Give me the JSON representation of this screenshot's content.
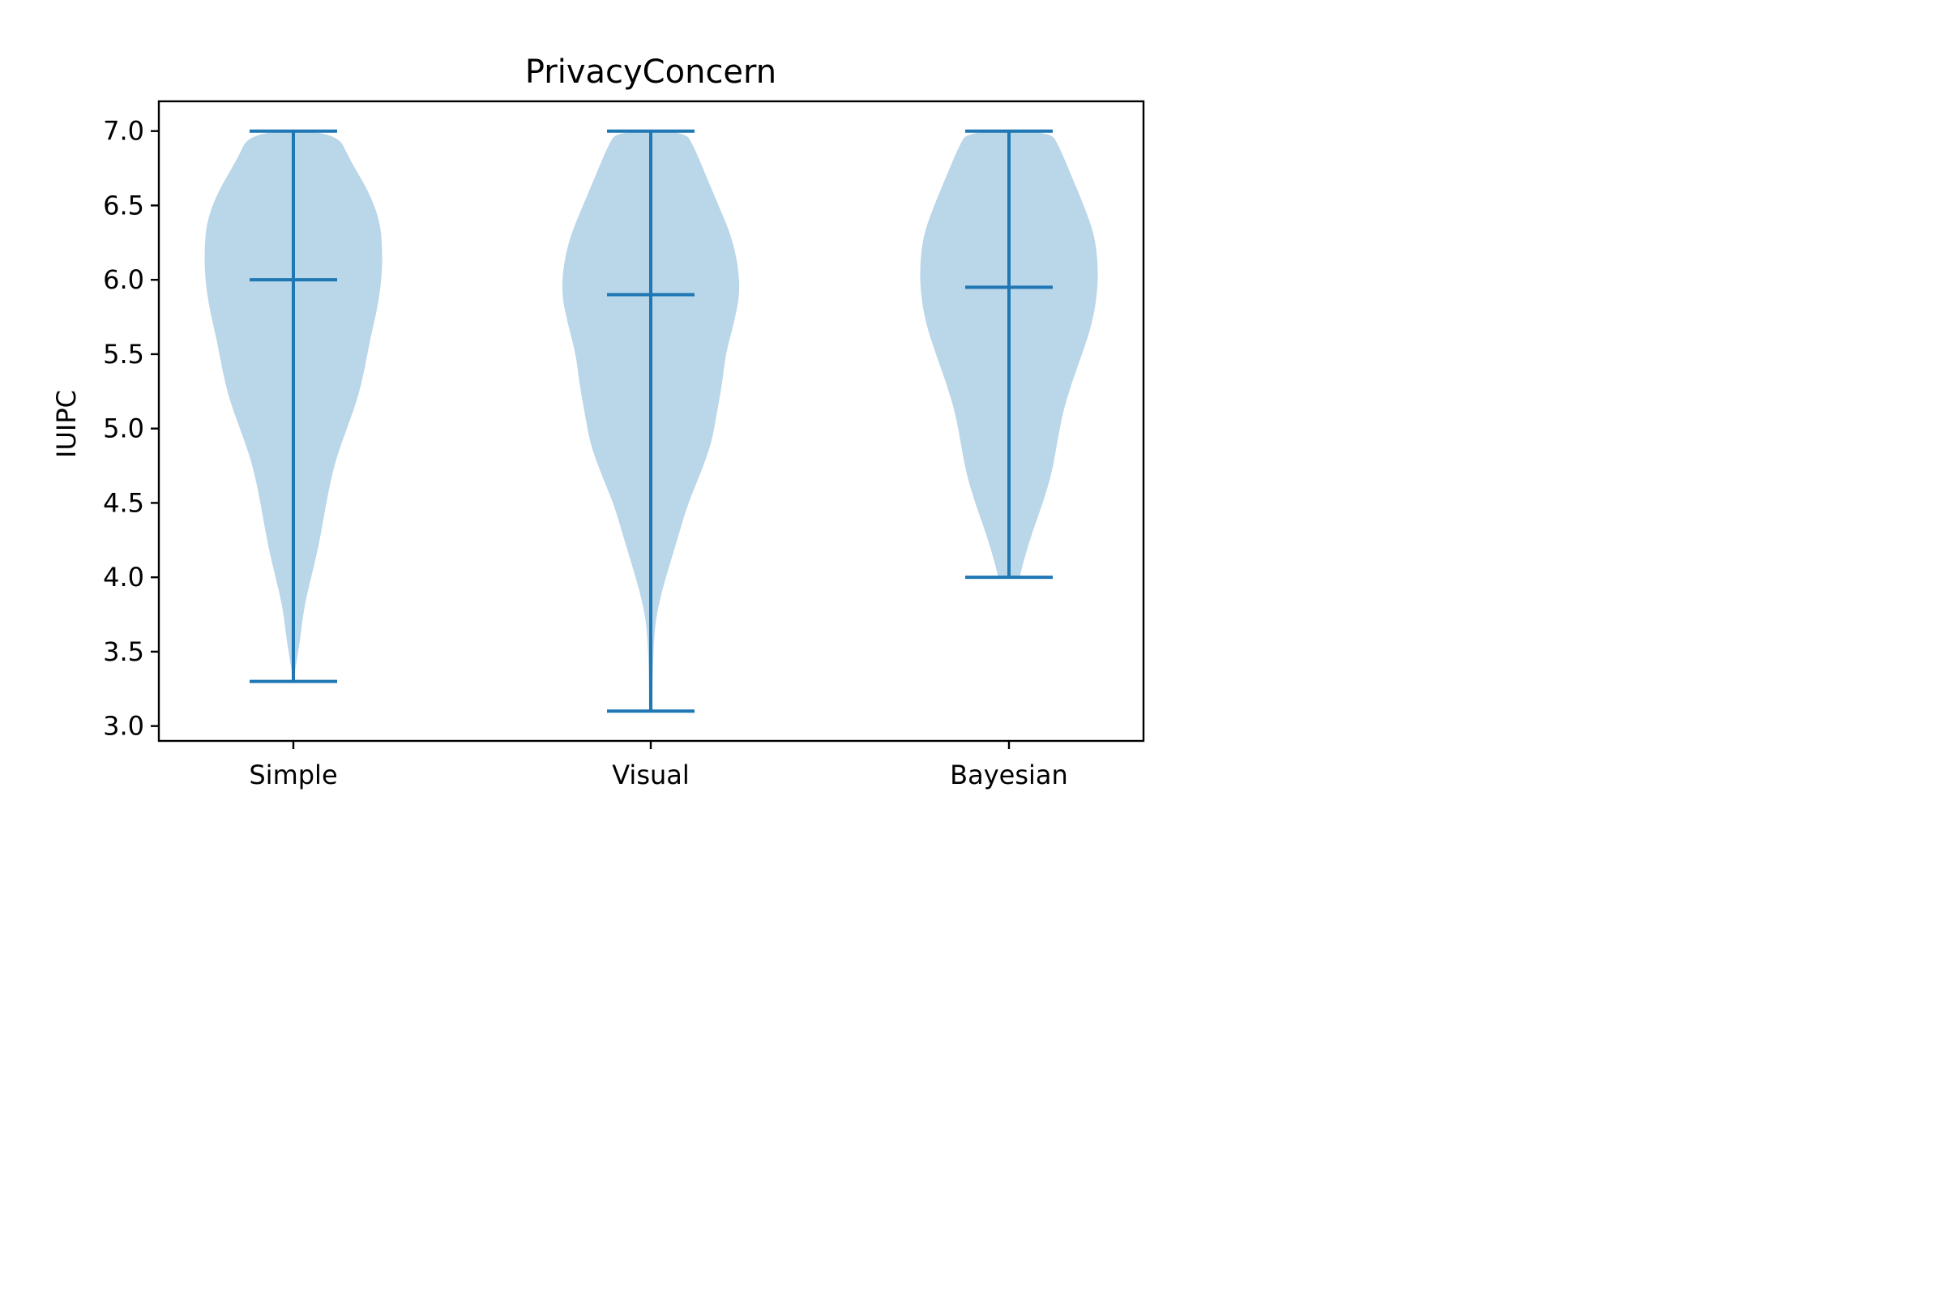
{
  "chart_data": {
    "type": "violin",
    "title": "PrivacyConcern",
    "xlabel": "",
    "ylabel": "IUIPC",
    "ylim": [
      2.9,
      7.2
    ],
    "yticks": [
      "3.0",
      "3.5",
      "4.0",
      "4.5",
      "5.0",
      "5.5",
      "6.0",
      "6.5",
      "7.0"
    ],
    "categories": [
      "Simple",
      "Visual",
      "Bayesian"
    ],
    "grid": false,
    "colors": {
      "body": "#bad6e9",
      "lines": "#1f77b4",
      "axes": "#000000"
    },
    "series": [
      {
        "category": "Simple",
        "min": 3.3,
        "mean": 6.0,
        "max": 7.0,
        "density": [
          [
            3.3,
            0.0
          ],
          [
            3.45,
            0.04
          ],
          [
            3.6,
            0.08
          ],
          [
            3.8,
            0.12
          ],
          [
            4.0,
            0.2
          ],
          [
            4.2,
            0.28
          ],
          [
            4.4,
            0.34
          ],
          [
            4.6,
            0.4
          ],
          [
            4.8,
            0.48
          ],
          [
            5.0,
            0.6
          ],
          [
            5.2,
            0.72
          ],
          [
            5.4,
            0.8
          ],
          [
            5.6,
            0.86
          ],
          [
            5.8,
            0.94
          ],
          [
            6.0,
            0.99
          ],
          [
            6.2,
            1.0
          ],
          [
            6.4,
            0.97
          ],
          [
            6.6,
            0.84
          ],
          [
            6.8,
            0.64
          ],
          [
            7.0,
            0.48
          ]
        ]
      },
      {
        "category": "Visual",
        "min": 3.1,
        "mean": 5.9,
        "max": 7.0,
        "density": [
          [
            3.1,
            0.02
          ],
          [
            3.3,
            0.02
          ],
          [
            3.5,
            0.03
          ],
          [
            3.7,
            0.05
          ],
          [
            3.9,
            0.12
          ],
          [
            4.1,
            0.22
          ],
          [
            4.3,
            0.32
          ],
          [
            4.5,
            0.42
          ],
          [
            4.7,
            0.56
          ],
          [
            4.9,
            0.68
          ],
          [
            5.1,
            0.74
          ],
          [
            5.3,
            0.8
          ],
          [
            5.5,
            0.84
          ],
          [
            5.7,
            0.93
          ],
          [
            5.9,
            1.0
          ],
          [
            6.1,
            0.98
          ],
          [
            6.3,
            0.9
          ],
          [
            6.5,
            0.76
          ],
          [
            6.7,
            0.62
          ],
          [
            6.9,
            0.48
          ],
          [
            7.0,
            0.38
          ]
        ]
      },
      {
        "category": "Bayesian",
        "min": 4.0,
        "mean": 5.95,
        "max": 7.0,
        "density": [
          [
            4.0,
            0.12
          ],
          [
            4.1,
            0.16
          ],
          [
            4.3,
            0.26
          ],
          [
            4.5,
            0.38
          ],
          [
            4.7,
            0.48
          ],
          [
            4.9,
            0.54
          ],
          [
            5.1,
            0.6
          ],
          [
            5.3,
            0.7
          ],
          [
            5.5,
            0.82
          ],
          [
            5.7,
            0.93
          ],
          [
            5.9,
            0.99
          ],
          [
            6.1,
            1.0
          ],
          [
            6.3,
            0.96
          ],
          [
            6.5,
            0.84
          ],
          [
            6.7,
            0.7
          ],
          [
            6.9,
            0.56
          ],
          [
            7.0,
            0.46
          ]
        ]
      }
    ]
  }
}
